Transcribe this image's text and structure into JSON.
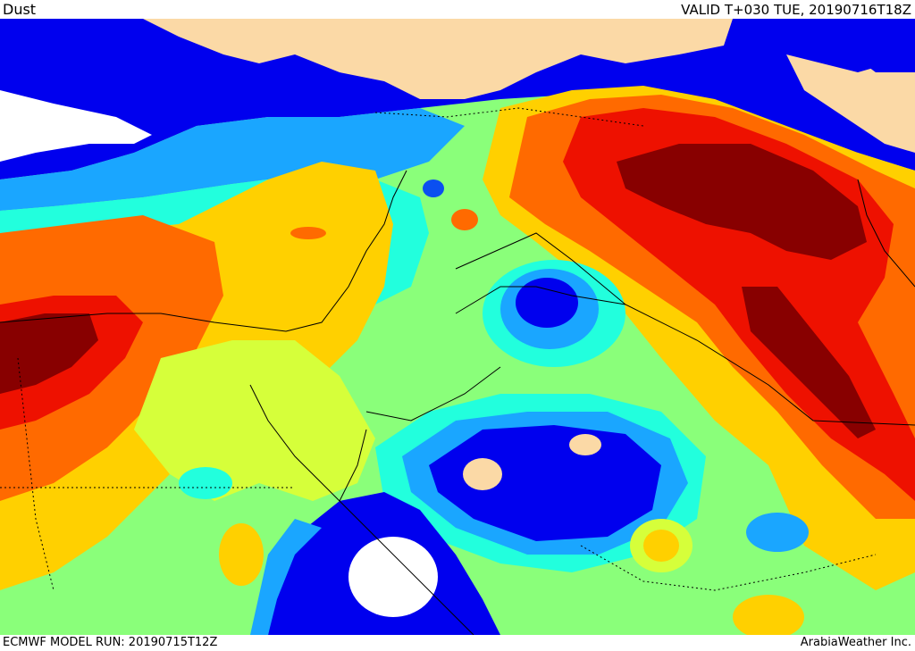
{
  "header": {
    "product": "Dust",
    "valid": "VALID T+030 TUE, 20190716T18Z"
  },
  "footer": {
    "model_run": "ECMWF MODEL RUN: 20190715T12Z",
    "credit": "ArabiaWeather Inc."
  },
  "colors": {
    "land_outside": "#fbd9a6",
    "white": "#ffffff",
    "blue": "#0000ee",
    "mid_blue": "#0b4ff0",
    "light_blue": "#1aa6ff",
    "cyan": "#22ffdd",
    "green": "#8aff7a",
    "yellow_green": "#d6ff3a",
    "yellow": "#ffd000",
    "orange": "#ffb000",
    "dark_orange": "#ff6a00",
    "red": "#ee1100",
    "dark_red": "#880000"
  },
  "icons": {
    "map": "dust-forecast-map"
  }
}
